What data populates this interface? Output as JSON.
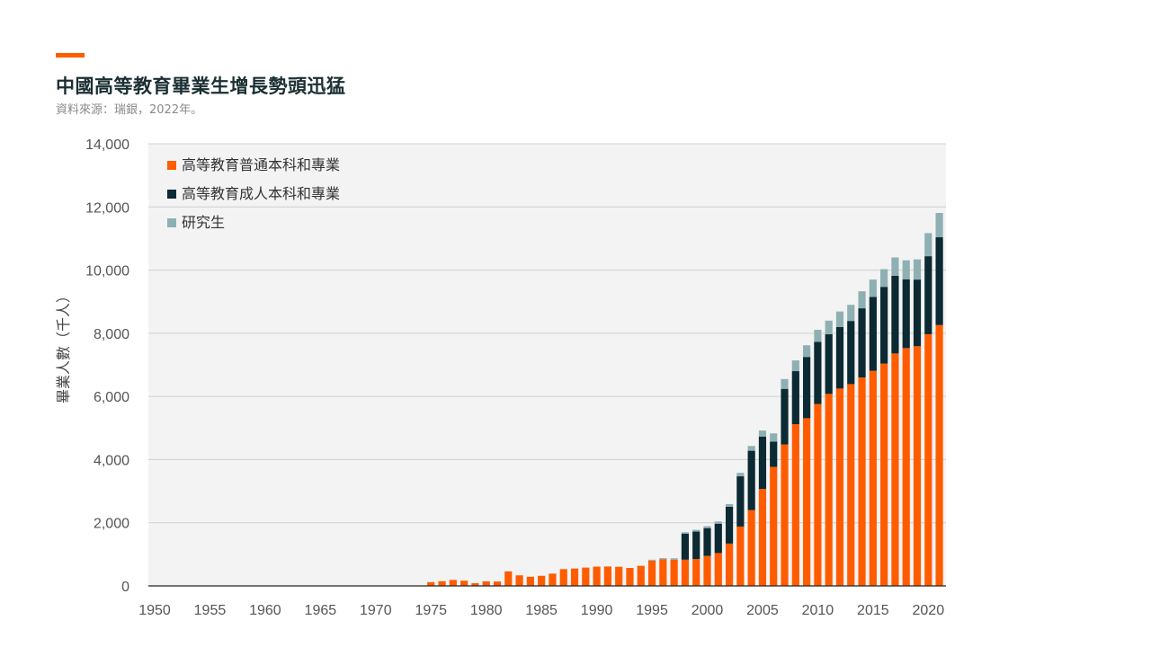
{
  "colors": {
    "accent": "#ff5c00",
    "regular": "#ff5c00",
    "adult": "#0b2a33",
    "graduate": "#8fb0b3",
    "plot_bg": "#f3f3f3",
    "grid": "#d0d0d0"
  },
  "header": {
    "title": "中國高等教育畢業生增長勢頭迅猛",
    "subtitle": "資料來源：瑞銀，2022年。"
  },
  "chart_data": {
    "type": "bar",
    "stacked": true,
    "ylabel": "畢業人數（千人）",
    "ylim": [
      0,
      14000
    ],
    "yticks": [
      0,
      2000,
      4000,
      6000,
      8000,
      10000,
      12000,
      14000
    ],
    "ytick_labels": [
      "0",
      "2,000",
      "4,000",
      "6,000",
      "8,000",
      "10,000",
      "12,000",
      "14,000"
    ],
    "xlim": [
      1950,
      2021
    ],
    "xticks": [
      1950,
      1955,
      1960,
      1965,
      1970,
      1975,
      1980,
      1985,
      1990,
      1995,
      2000,
      2005,
      2010,
      2015,
      2020
    ],
    "xtick_labels": [
      "1950",
      "1955",
      "1960",
      "1965",
      "1970",
      "1975",
      "1980",
      "1985",
      "1990",
      "1995",
      "2000",
      "2005",
      "2010",
      "2015",
      "2020"
    ],
    "grid": true,
    "legend_position": "top-left",
    "x": [
      1975,
      1976,
      1977,
      1978,
      1979,
      1980,
      1981,
      1982,
      1983,
      1984,
      1985,
      1986,
      1987,
      1988,
      1989,
      1990,
      1991,
      1992,
      1993,
      1994,
      1995,
      1996,
      1997,
      1998,
      1999,
      2000,
      2001,
      2002,
      2003,
      2004,
      2005,
      2006,
      2007,
      2008,
      2009,
      2010,
      2011,
      2012,
      2013,
      2014,
      2015,
      2016,
      2017,
      2018,
      2019,
      2020,
      2021
    ],
    "series": [
      {
        "name": "高等教育普通本科和專業",
        "color_key": "regular",
        "values": [
          120,
          150,
          190,
          165,
          85,
          145,
          140,
          460,
          335,
          290,
          320,
          390,
          530,
          550,
          580,
          610,
          615,
          605,
          570,
          635,
          800,
          840,
          830,
          830,
          850,
          950,
          1040,
          1340,
          1880,
          2400,
          3070,
          3770,
          4480,
          5120,
          5310,
          5760,
          6080,
          6250,
          6390,
          6600,
          6810,
          7040,
          7360,
          7530,
          7590,
          7970,
          8260
        ]
      },
      {
        "name": "高等教育成人本科和專業",
        "color_key": "adult",
        "values": [
          0,
          0,
          0,
          0,
          0,
          0,
          0,
          0,
          0,
          0,
          0,
          0,
          0,
          0,
          0,
          0,
          0,
          0,
          0,
          0,
          0,
          0,
          0,
          820,
          870,
          880,
          930,
          1170,
          1590,
          1880,
          1660,
          800,
          1760,
          1680,
          1940,
          1970,
          1890,
          1950,
          2000,
          2190,
          2340,
          2430,
          2460,
          2180,
          2110,
          2470,
          2780
        ]
      },
      {
        "name": "研究生",
        "color_key": "graduate",
        "values": [
          0,
          0,
          0,
          0,
          0,
          0,
          0,
          0,
          0,
          0,
          0,
          0,
          0,
          0,
          0,
          0,
          0,
          0,
          0,
          0,
          30,
          40,
          45,
          50,
          55,
          60,
          70,
          80,
          110,
          150,
          190,
          260,
          310,
          340,
          370,
          380,
          430,
          490,
          510,
          540,
          550,
          560,
          580,
          600,
          640,
          730,
          770
        ]
      }
    ]
  }
}
